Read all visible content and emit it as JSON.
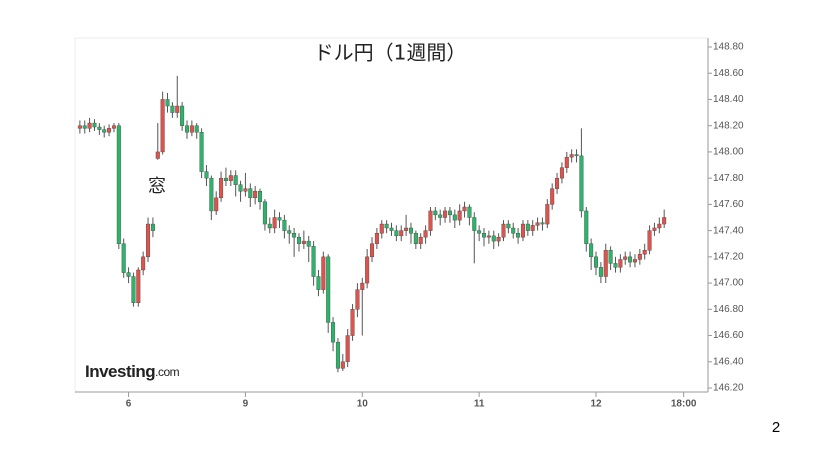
{
  "page_number": "2",
  "chart_data": {
    "type": "candlestick",
    "title": "ドル円（1週間）",
    "annotation": "窓",
    "watermark": {
      "brand": "Investing",
      "suffix": ".com"
    },
    "up_color": "#e0524c",
    "down_color": "#2bb56a",
    "wick_color": "#555555",
    "x": [
      0,
      1,
      2,
      3,
      4,
      5,
      6,
      7,
      8,
      9,
      10,
      11,
      12,
      13,
      14,
      15,
      16,
      17,
      18,
      19,
      20,
      21,
      22,
      23,
      24,
      25,
      26,
      27,
      28,
      29,
      30,
      31,
      32,
      33,
      34,
      35,
      36,
      37,
      38,
      39,
      40,
      41,
      42,
      43,
      44,
      45,
      46,
      47,
      48,
      49,
      50,
      51,
      52,
      53,
      54,
      55,
      56,
      57,
      58,
      59,
      60,
      61,
      62,
      63,
      64,
      65,
      66,
      67,
      68,
      69,
      70,
      71,
      72,
      73,
      74,
      75,
      76,
      77,
      78,
      79,
      80,
      81,
      82,
      83,
      84,
      85,
      86,
      87,
      88,
      89,
      90,
      91,
      92,
      93,
      94,
      95,
      96,
      97,
      98,
      99,
      100,
      101,
      102,
      103,
      104,
      105,
      106,
      107,
      108,
      109,
      110,
      111,
      112,
      113,
      114,
      115,
      116,
      117,
      118,
      119,
      120
    ],
    "open": [
      148.18,
      148.2,
      148.18,
      148.22,
      148.19,
      148.17,
      148.15,
      148.18,
      148.2,
      147.3,
      147.08,
      147.05,
      146.85,
      147.1,
      147.2,
      147.45,
      147.95,
      148.0,
      148.4,
      148.35,
      148.3,
      148.35,
      148.2,
      148.15,
      148.2,
      148.15,
      147.85,
      147.8,
      147.55,
      147.65,
      147.8,
      147.78,
      147.82,
      147.75,
      147.7,
      147.72,
      147.65,
      147.7,
      147.62,
      147.45,
      147.42,
      147.5,
      147.48,
      147.4,
      147.38,
      147.35,
      147.3,
      147.32,
      147.28,
      147.05,
      146.95,
      147.2,
      146.7,
      146.55,
      146.35,
      146.4,
      146.6,
      146.8,
      146.95,
      147.0,
      147.2,
      147.3,
      147.38,
      147.45,
      147.42,
      147.4,
      147.36,
      147.4,
      147.42,
      147.38,
      147.3,
      147.35,
      147.4,
      147.55,
      147.52,
      147.5,
      147.55,
      147.52,
      147.48,
      147.55,
      147.58,
      147.5,
      147.4,
      147.38,
      147.35,
      147.36,
      147.32,
      147.35,
      147.45,
      147.42,
      147.38,
      147.35,
      147.45,
      147.4,
      147.44,
      147.46,
      147.45,
      147.6,
      147.72,
      147.8,
      147.88,
      147.96,
      147.98,
      147.97,
      147.55,
      147.3,
      147.2,
      147.12,
      147.05,
      147.25,
      147.15,
      147.12,
      147.18,
      147.2,
      147.16,
      147.18,
      147.22,
      147.25,
      147.4,
      147.42,
      147.45
    ],
    "high": [
      148.24,
      148.24,
      148.26,
      148.25,
      148.22,
      148.2,
      148.21,
      148.22,
      148.22,
      147.34,
      147.12,
      147.08,
      147.12,
      147.24,
      147.5,
      147.5,
      148.22,
      148.46,
      148.45,
      148.38,
      148.58,
      148.38,
      148.24,
      148.24,
      148.22,
      148.18,
      147.9,
      147.82,
      147.7,
      147.85,
      147.88,
      147.86,
      147.86,
      147.78,
      147.84,
      147.76,
      147.74,
      147.72,
      147.64,
      147.5,
      147.56,
      147.54,
      147.52,
      147.44,
      147.42,
      147.38,
      147.4,
      147.36,
      147.32,
      147.1,
      147.24,
      147.22,
      146.74,
      146.58,
      146.46,
      146.65,
      146.84,
      147.0,
      147.04,
      147.26,
      147.35,
      147.42,
      147.48,
      147.48,
      147.46,
      147.44,
      147.44,
      147.52,
      147.46,
      147.4,
      147.38,
      147.44,
      147.58,
      147.58,
      147.56,
      147.58,
      147.58,
      147.56,
      147.6,
      147.62,
      147.6,
      147.54,
      147.44,
      147.42,
      147.4,
      147.4,
      147.38,
      147.48,
      147.48,
      147.46,
      147.42,
      147.48,
      147.48,
      147.48,
      147.5,
      147.5,
      147.64,
      147.76,
      147.84,
      147.92,
      148.0,
      148.02,
      148.02,
      148.18,
      147.58,
      147.34,
      147.24,
      147.16,
      147.3,
      147.28,
      147.2,
      147.22,
      147.24,
      147.24,
      147.22,
      147.26,
      147.3,
      147.44,
      147.46,
      147.5,
      147.56
    ],
    "low": [
      148.14,
      148.14,
      148.15,
      148.16,
      148.13,
      148.11,
      148.12,
      148.15,
      147.26,
      147.04,
      147.0,
      146.82,
      146.82,
      147.06,
      147.16,
      147.35,
      147.94,
      147.98,
      148.3,
      148.26,
      148.26,
      148.16,
      148.1,
      148.12,
      148.1,
      147.8,
      147.74,
      147.48,
      147.52,
      147.62,
      147.74,
      147.74,
      147.66,
      147.62,
      147.66,
      147.58,
      147.6,
      147.56,
      147.4,
      147.38,
      147.38,
      147.42,
      147.34,
      147.3,
      147.2,
      147.24,
      147.26,
      147.16,
      146.98,
      146.9,
      146.92,
      146.62,
      146.48,
      146.32,
      146.33,
      146.36,
      146.56,
      146.74,
      146.6,
      146.96,
      147.16,
      147.26,
      147.34,
      147.38,
      147.36,
      147.32,
      147.32,
      147.36,
      147.3,
      147.26,
      147.26,
      147.3,
      147.36,
      147.48,
      147.44,
      147.46,
      147.46,
      147.42,
      147.44,
      147.5,
      147.44,
      147.15,
      147.32,
      147.28,
      147.3,
      147.26,
      147.28,
      147.32,
      147.38,
      147.34,
      147.3,
      147.32,
      147.36,
      147.36,
      147.4,
      147.4,
      147.42,
      147.56,
      147.68,
      147.76,
      147.84,
      147.92,
      147.92,
      147.5,
      147.24,
      147.1,
      147.06,
      147.0,
      147.0,
      147.1,
      147.08,
      147.08,
      147.14,
      147.12,
      147.12,
      147.14,
      147.18,
      147.22,
      147.36,
      147.38,
      147.42
    ],
    "close": [
      148.2,
      148.18,
      148.22,
      148.19,
      148.17,
      148.15,
      148.18,
      148.2,
      147.3,
      147.08,
      147.05,
      146.85,
      147.1,
      147.2,
      147.45,
      147.4,
      148.0,
      148.4,
      148.35,
      148.3,
      148.35,
      148.2,
      148.15,
      148.2,
      148.15,
      147.85,
      147.8,
      147.55,
      147.65,
      147.8,
      147.78,
      147.82,
      147.75,
      147.7,
      147.72,
      147.65,
      147.7,
      147.62,
      147.45,
      147.42,
      147.5,
      147.48,
      147.4,
      147.38,
      147.35,
      147.3,
      147.32,
      147.28,
      147.05,
      146.95,
      147.2,
      146.7,
      146.55,
      146.35,
      146.4,
      146.6,
      146.8,
      146.95,
      147.0,
      147.2,
      147.3,
      147.38,
      147.45,
      147.42,
      147.4,
      147.36,
      147.4,
      147.42,
      147.38,
      147.3,
      147.35,
      147.4,
      147.55,
      147.52,
      147.5,
      147.55,
      147.52,
      147.48,
      147.55,
      147.58,
      147.5,
      147.4,
      147.38,
      147.35,
      147.36,
      147.32,
      147.35,
      147.45,
      147.42,
      147.38,
      147.35,
      147.45,
      147.4,
      147.44,
      147.46,
      147.45,
      147.6,
      147.72,
      147.8,
      147.88,
      147.96,
      147.98,
      147.97,
      147.55,
      147.3,
      147.2,
      147.12,
      147.05,
      147.25,
      147.15,
      147.12,
      147.18,
      147.2,
      147.16,
      147.18,
      147.22,
      147.25,
      147.4,
      147.42,
      147.45,
      147.5
    ],
    "xlim": [
      -1,
      129
    ],
    "xticks": [
      {
        "value": 10,
        "label": "6"
      },
      {
        "value": 34,
        "label": "9"
      },
      {
        "value": 58,
        "label": "10"
      },
      {
        "value": 82,
        "label": "11"
      },
      {
        "value": 106,
        "label": "12"
      },
      {
        "value": 124,
        "label": "18:00"
      }
    ],
    "ylim": [
      146.2,
      148.8
    ],
    "yticks": [
      {
        "value": 146.2,
        "label": "146.20"
      },
      {
        "value": 146.4,
        "label": "146.40"
      },
      {
        "value": 146.6,
        "label": "146.60"
      },
      {
        "value": 146.8,
        "label": "146.80"
      },
      {
        "value": 147.0,
        "label": "147.00"
      },
      {
        "value": 147.2,
        "label": "147.20"
      },
      {
        "value": 147.4,
        "label": "147.40"
      },
      {
        "value": 147.6,
        "label": "147.60"
      },
      {
        "value": 147.8,
        "label": "147.80"
      },
      {
        "value": 148.0,
        "label": "148.00"
      },
      {
        "value": 148.2,
        "label": "148.20"
      },
      {
        "value": 148.4,
        "label": "148.40"
      },
      {
        "value": 148.6,
        "label": "148.60"
      },
      {
        "value": 148.8,
        "label": "148.80"
      }
    ]
  }
}
